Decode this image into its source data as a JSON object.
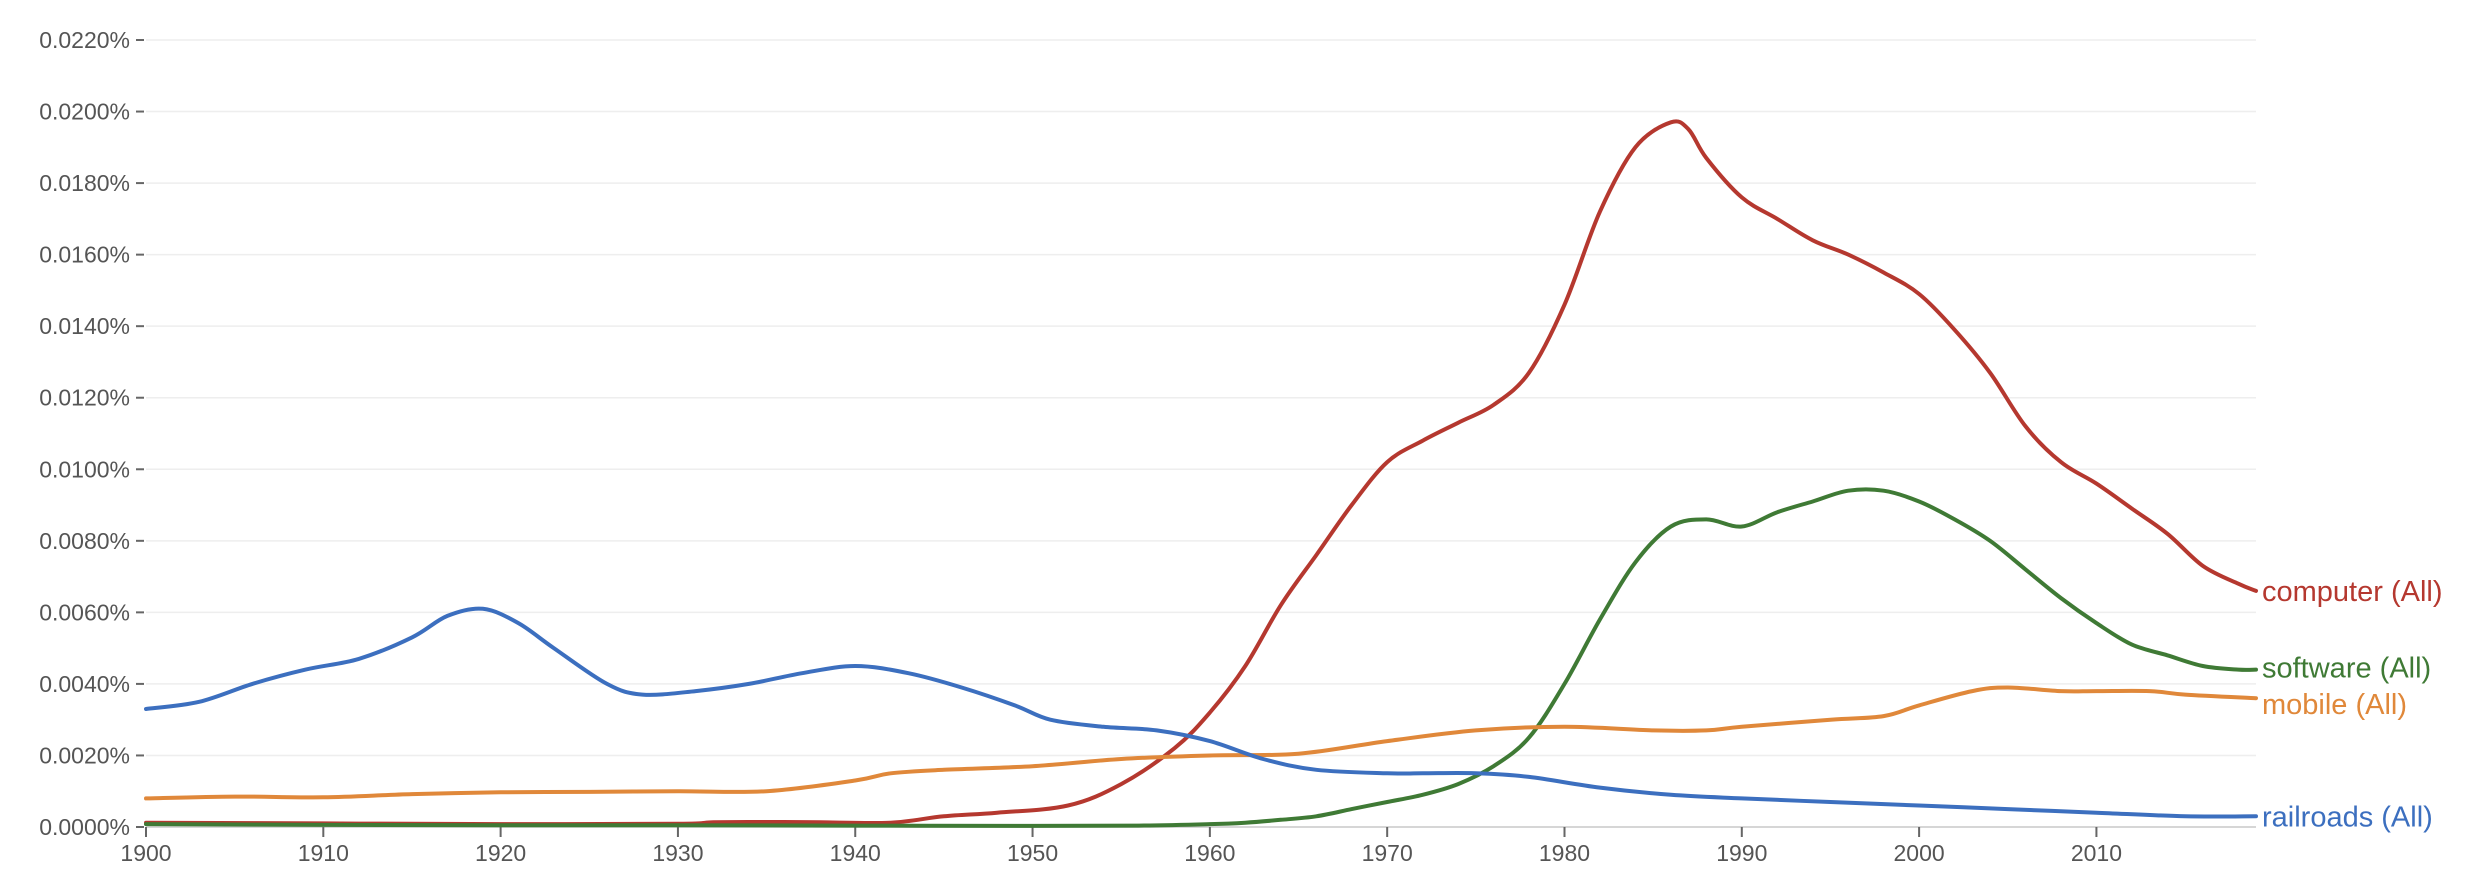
{
  "chart_data": {
    "type": "line",
    "x_label": "",
    "y_label": "",
    "xlim": [
      1900,
      2019
    ],
    "ylim": [
      0,
      0.022
    ],
    "grid": true,
    "legend_placement": "right, at line ends",
    "y_ticks": [
      {
        "value": 0.0,
        "label": "0.0000%"
      },
      {
        "value": 0.002,
        "label": "0.0020%"
      },
      {
        "value": 0.004,
        "label": "0.0040%"
      },
      {
        "value": 0.006,
        "label": "0.0060%"
      },
      {
        "value": 0.008,
        "label": "0.0080%"
      },
      {
        "value": 0.01,
        "label": "0.0100%"
      },
      {
        "value": 0.012,
        "label": "0.0120%"
      },
      {
        "value": 0.014,
        "label": "0.0140%"
      },
      {
        "value": 0.016,
        "label": "0.0160%"
      },
      {
        "value": 0.018,
        "label": "0.0180%"
      },
      {
        "value": 0.02,
        "label": "0.0200%"
      },
      {
        "value": 0.022,
        "label": "0.0220%"
      }
    ],
    "x_ticks": [
      {
        "value": 1900,
        "label": "1900"
      },
      {
        "value": 1910,
        "label": "1910"
      },
      {
        "value": 1920,
        "label": "1920"
      },
      {
        "value": 1930,
        "label": "1930"
      },
      {
        "value": 1940,
        "label": "1940"
      },
      {
        "value": 1950,
        "label": "1950"
      },
      {
        "value": 1960,
        "label": "1960"
      },
      {
        "value": 1970,
        "label": "1970"
      },
      {
        "value": 1980,
        "label": "1980"
      },
      {
        "value": 1990,
        "label": "1990"
      },
      {
        "value": 2000,
        "label": "2000"
      },
      {
        "value": 2010,
        "label": "2010"
      }
    ],
    "series": [
      {
        "name": "computer (All)",
        "color": "#b5382f",
        "points": [
          [
            1900,
            0.00012
          ],
          [
            1910,
            0.0001
          ],
          [
            1920,
            8e-05
          ],
          [
            1930,
            9e-05
          ],
          [
            1932,
            0.00013
          ],
          [
            1935,
            0.00014
          ],
          [
            1938,
            0.00013
          ],
          [
            1942,
            0.00012
          ],
          [
            1945,
            0.0003
          ],
          [
            1948,
            0.0004
          ],
          [
            1952,
            0.0006
          ],
          [
            1955,
            0.0012
          ],
          [
            1958,
            0.0022
          ],
          [
            1960,
            0.0032
          ],
          [
            1962,
            0.0045
          ],
          [
            1964,
            0.0062
          ],
          [
            1966,
            0.0076
          ],
          [
            1968,
            0.009
          ],
          [
            1970,
            0.0102
          ],
          [
            1972,
            0.0108
          ],
          [
            1974,
            0.0113
          ],
          [
            1976,
            0.0118
          ],
          [
            1978,
            0.0127
          ],
          [
            1980,
            0.0146
          ],
          [
            1982,
            0.0172
          ],
          [
            1984,
            0.019
          ],
          [
            1986,
            0.0197
          ],
          [
            1987,
            0.0195
          ],
          [
            1988,
            0.0187
          ],
          [
            1990,
            0.0176
          ],
          [
            1992,
            0.017
          ],
          [
            1994,
            0.0164
          ],
          [
            1996,
            0.016
          ],
          [
            1998,
            0.0155
          ],
          [
            2000,
            0.0149
          ],
          [
            2002,
            0.0139
          ],
          [
            2004,
            0.0127
          ],
          [
            2006,
            0.0112
          ],
          [
            2008,
            0.0102
          ],
          [
            2010,
            0.0096
          ],
          [
            2012,
            0.0089
          ],
          [
            2014,
            0.0082
          ],
          [
            2016,
            0.0073
          ],
          [
            2018,
            0.0068
          ],
          [
            2019,
            0.0066
          ]
        ]
      },
      {
        "name": "software (All)",
        "color": "#3f7a35",
        "points": [
          [
            1900,
            8e-05
          ],
          [
            1910,
            6e-05
          ],
          [
            1920,
            5e-05
          ],
          [
            1930,
            5e-05
          ],
          [
            1940,
            4e-05
          ],
          [
            1950,
            3e-05
          ],
          [
            1956,
            4e-05
          ],
          [
            1960,
            8e-05
          ],
          [
            1962,
            0.00012
          ],
          [
            1964,
            0.0002
          ],
          [
            1966,
            0.0003
          ],
          [
            1968,
            0.0005
          ],
          [
            1970,
            0.0007
          ],
          [
            1972,
            0.0009
          ],
          [
            1974,
            0.0012
          ],
          [
            1976,
            0.0017
          ],
          [
            1978,
            0.0025
          ],
          [
            1980,
            0.004
          ],
          [
            1982,
            0.0058
          ],
          [
            1984,
            0.0074
          ],
          [
            1986,
            0.0084
          ],
          [
            1988,
            0.0086
          ],
          [
            1990,
            0.0084
          ],
          [
            1992,
            0.0088
          ],
          [
            1994,
            0.0091
          ],
          [
            1996,
            0.0094
          ],
          [
            1998,
            0.0094
          ],
          [
            2000,
            0.0091
          ],
          [
            2002,
            0.0086
          ],
          [
            2004,
            0.008
          ],
          [
            2006,
            0.0072
          ],
          [
            2008,
            0.0064
          ],
          [
            2010,
            0.0057
          ],
          [
            2012,
            0.0051
          ],
          [
            2014,
            0.0048
          ],
          [
            2016,
            0.0045
          ],
          [
            2018,
            0.0044
          ],
          [
            2019,
            0.0044
          ]
        ]
      },
      {
        "name": "mobile (All)",
        "color": "#e0883a",
        "points": [
          [
            1900,
            0.0008
          ],
          [
            1905,
            0.00085
          ],
          [
            1910,
            0.00083
          ],
          [
            1915,
            0.00092
          ],
          [
            1920,
            0.00097
          ],
          [
            1925,
            0.00098
          ],
          [
            1930,
            0.001
          ],
          [
            1935,
            0.001
          ],
          [
            1940,
            0.0013
          ],
          [
            1942,
            0.0015
          ],
          [
            1945,
            0.0016
          ],
          [
            1950,
            0.0017
          ],
          [
            1955,
            0.0019
          ],
          [
            1960,
            0.002
          ],
          [
            1965,
            0.00205
          ],
          [
            1970,
            0.0024
          ],
          [
            1975,
            0.0027
          ],
          [
            1980,
            0.0028
          ],
          [
            1985,
            0.0027
          ],
          [
            1988,
            0.0027
          ],
          [
            1990,
            0.0028
          ],
          [
            1995,
            0.003
          ],
          [
            1998,
            0.0031
          ],
          [
            2000,
            0.0034
          ],
          [
            2003,
            0.0038
          ],
          [
            2005,
            0.0039
          ],
          [
            2008,
            0.0038
          ],
          [
            2010,
            0.0038
          ],
          [
            2013,
            0.0038
          ],
          [
            2015,
            0.0037
          ],
          [
            2019,
            0.0036
          ]
        ]
      },
      {
        "name": "railroads (All)",
        "color": "#3c6fbf",
        "points": [
          [
            1900,
            0.0033
          ],
          [
            1903,
            0.0035
          ],
          [
            1906,
            0.004
          ],
          [
            1909,
            0.0044
          ],
          [
            1912,
            0.0047
          ],
          [
            1915,
            0.0053
          ],
          [
            1917,
            0.0059
          ],
          [
            1919,
            0.0061
          ],
          [
            1921,
            0.0057
          ],
          [
            1923,
            0.005
          ],
          [
            1926,
            0.004
          ],
          [
            1928,
            0.0037
          ],
          [
            1931,
            0.0038
          ],
          [
            1934,
            0.004
          ],
          [
            1937,
            0.0043
          ],
          [
            1940,
            0.0045
          ],
          [
            1943,
            0.0043
          ],
          [
            1946,
            0.0039
          ],
          [
            1949,
            0.0034
          ],
          [
            1951,
            0.003
          ],
          [
            1954,
            0.0028
          ],
          [
            1957,
            0.0027
          ],
          [
            1960,
            0.0024
          ],
          [
            1963,
            0.0019
          ],
          [
            1966,
            0.0016
          ],
          [
            1970,
            0.0015
          ],
          [
            1972,
            0.0015
          ],
          [
            1975,
            0.0015
          ],
          [
            1978,
            0.0014
          ],
          [
            1982,
            0.0011
          ],
          [
            1986,
            0.0009
          ],
          [
            1990,
            0.0008
          ],
          [
            1995,
            0.0007
          ],
          [
            2000,
            0.0006
          ],
          [
            2005,
            0.0005
          ],
          [
            2010,
            0.0004
          ],
          [
            2015,
            0.0003
          ],
          [
            2019,
            0.0003
          ]
        ]
      }
    ]
  }
}
